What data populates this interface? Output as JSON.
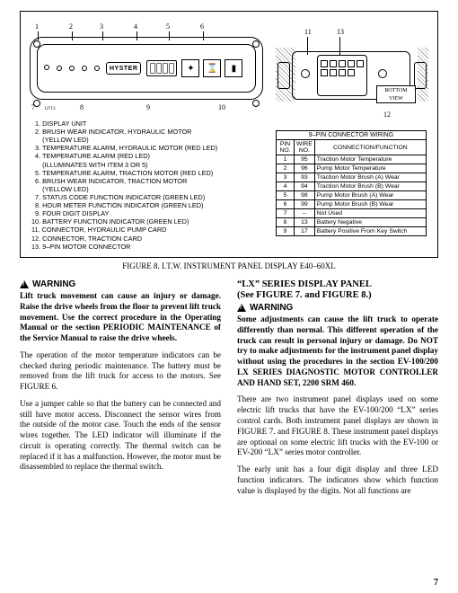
{
  "figure": {
    "brand": "HYSTER",
    "partno": "12713",
    "bottom_view": "BOTTOM\nVIEW",
    "callouts_top": [
      "1",
      "2",
      "3",
      "4",
      "5",
      "6"
    ],
    "callouts_bottom": [
      "7",
      "8",
      "9",
      "10"
    ],
    "callouts_right": [
      "11",
      "13",
      "12"
    ],
    "caption": "FIGURE 8. I.T.W. INSTRUMENT PANEL DISPLAY E40–60XL"
  },
  "legend": [
    "  1. DISPLAY UNIT",
    "  2. BRUSH WEAR INDICATOR, HYDRAULIC MOTOR",
    "      (YELLOW LED)",
    "  3. TEMPERATURE ALARM, HYDRAULIC MOTOR (RED LED)",
    "  4. TEMPERATURE ALARM (RED LED)",
    "      (ILLUMINATES WITH ITEM 3 OR 5)",
    "  5. TEMPERATURE ALARM, TRACTION MOTOR (RED LED)",
    "  6. BRUSH WEAR INDICATOR, TRACTION MOTOR",
    "      (YELLOW LED)",
    "  7. STATUS CODE FUNCTION INDICATOR (GREEN LED)",
    "  8. HOUR METER FUNCTION INDICATOR (GREEN LED)",
    "  9. FOUR DIGIT DISPLAY",
    "10. BATTERY FUNCTION INDICATOR (GREEN LED)",
    "11. CONNECTOR, HYDRAULIC PUMP CARD",
    "12. CONNECTOR, TRACTION CARD",
    "13. 9–PIN MOTOR CONNECTOR"
  ],
  "wiring": {
    "title": "9–PIN CONNECTOR WIRING",
    "headers": [
      "PIN\nNO.",
      "WIRE\nNO.",
      "CONNECTION/FUNCTION"
    ],
    "rows": [
      [
        "1",
        "95",
        "Traction Motor Temperature"
      ],
      [
        "2",
        "96",
        "Pump Motor Temperature"
      ],
      [
        "3",
        "93",
        "Traction Motor Brush (A) Wear"
      ],
      [
        "4",
        "94",
        "Traction Motor Brush (B) Wear"
      ],
      [
        "5",
        "98",
        "Pump Motor Brush (A) Wear"
      ],
      [
        "6",
        "99",
        "Pump Motor Brush (B) Wear"
      ],
      [
        "7",
        "–",
        "Not Used"
      ],
      [
        "8",
        "13",
        "Battery Negative"
      ],
      [
        "9",
        "17",
        "Battery Positive From Key Switch"
      ]
    ]
  },
  "body": {
    "warning_label": "WARNING",
    "left_warning": "Lift truck movement can cause an injury or damage. Raise the drive wheels from the floor to prevent lift truck movement. Use the correct procedure in the Operating Manual or the section PERIODIC MAINTENANCE of the Service Manual to raise the drive wheels.",
    "left_p1": "The operation of the motor temperature indicators can be checked during periodic maintenance. The battery must be removed from the lift truck for access to the motors. See FIGURE 6.",
    "left_p2": "Use a jumper cable so that the battery can be connected and still have motor access. Disconnect the sensor wires from the outside of the motor case. Touch the ends of the sensor wires together. The LED indicator will illuminate if the circuit is operating correctly. The thermal switch can be replaced if it has a malfunction. However, the motor must be disassembled to replace the thermal switch.",
    "right_heading": "“LX” SERIES DISPLAY PANEL\n(See FIGURE 7. and FIGURE 8.)",
    "right_warning": "Some adjustments can cause the lift truck to operate differently than normal. This different operation of the truck can result in personal injury or damage. Do NOT try to make adjustments for the instrument panel display without using the procedures in the section EV-100/200 LX SERIES DIAGNOSTIC MOTOR CONTROLLER AND HAND SET, 2200 SRM 460.",
    "right_p1": "There are two instrument panel displays used on some electric lift trucks that have the EV-100/200 “LX” series control cards. Both instrument panel displays are shown in FIGURE 7. and FIGURE 8. These instrument panel displays are optional on some electric lift trucks with the EV-100 or EV-200 “LX” series motor controller.",
    "right_p2": "The early unit has a four digit display and three LED function indicators. The indicators show which function value is displayed by the digits. Not all functions are"
  },
  "pagenum": "7"
}
